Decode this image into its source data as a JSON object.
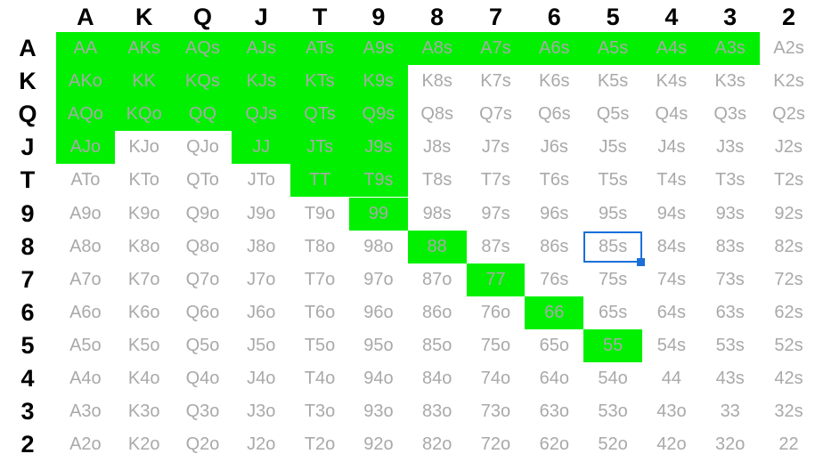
{
  "ranks": [
    "A",
    "K",
    "Q",
    "J",
    "T",
    "9",
    "8",
    "7",
    "6",
    "5",
    "4",
    "3",
    "2"
  ],
  "rows": [
    [
      "AA",
      "AKs",
      "AQs",
      "AJs",
      "ATs",
      "A9s",
      "A8s",
      "A7s",
      "A6s",
      "A5s",
      "A4s",
      "A3s",
      "A2s"
    ],
    [
      "AKo",
      "KK",
      "KQs",
      "KJs",
      "KTs",
      "K9s",
      "K8s",
      "K7s",
      "K6s",
      "K5s",
      "K4s",
      "K3s",
      "K2s"
    ],
    [
      "AQo",
      "KQo",
      "QQ",
      "QJs",
      "QTs",
      "Q9s",
      "Q8s",
      "Q7s",
      "Q6s",
      "Q5s",
      "Q4s",
      "Q3s",
      "Q2s"
    ],
    [
      "AJo",
      "KJo",
      "QJo",
      "JJ",
      "JTs",
      "J9s",
      "J8s",
      "J7s",
      "J6s",
      "J5s",
      "J4s",
      "J3s",
      "J2s"
    ],
    [
      "ATo",
      "KTo",
      "QTo",
      "JTo",
      "TT",
      "T9s",
      "T8s",
      "T7s",
      "T6s",
      "T5s",
      "T4s",
      "T3s",
      "T2s"
    ],
    [
      "A9o",
      "K9o",
      "Q9o",
      "J9o",
      "T9o",
      "99",
      "98s",
      "97s",
      "96s",
      "95s",
      "94s",
      "93s",
      "92s"
    ],
    [
      "A8o",
      "K8o",
      "Q8o",
      "J8o",
      "T8o",
      "98o",
      "88",
      "87s",
      "86s",
      "85s",
      "84s",
      "83s",
      "82s"
    ],
    [
      "A7o",
      "K7o",
      "Q7o",
      "J7o",
      "T7o",
      "97o",
      "87o",
      "77",
      "76s",
      "75s",
      "74s",
      "73s",
      "72s"
    ],
    [
      "A6o",
      "K6o",
      "Q6o",
      "J6o",
      "T6o",
      "96o",
      "86o",
      "76o",
      "66",
      "65s",
      "64s",
      "63s",
      "62s"
    ],
    [
      "A5o",
      "K5o",
      "Q5o",
      "J5o",
      "T5o",
      "95o",
      "85o",
      "75o",
      "65o",
      "55",
      "54s",
      "53s",
      "52s"
    ],
    [
      "A4o",
      "K4o",
      "Q4o",
      "J4o",
      "T4o",
      "94o",
      "84o",
      "74o",
      "64o",
      "54o",
      "44",
      "43s",
      "42s"
    ],
    [
      "A3o",
      "K3o",
      "Q3o",
      "J3o",
      "T3o",
      "93o",
      "83o",
      "73o",
      "63o",
      "53o",
      "43o",
      "33",
      "32s"
    ],
    [
      "A2o",
      "K2o",
      "Q2o",
      "J2o",
      "T2o",
      "92o",
      "82o",
      "72o",
      "62o",
      "52o",
      "42o",
      "32o",
      "22"
    ]
  ],
  "selected": [
    "AA",
    "AKs",
    "AQs",
    "AJs",
    "ATs",
    "A9s",
    "A8s",
    "A7s",
    "A6s",
    "A5s",
    "A4s",
    "A3s",
    "AKo",
    "KK",
    "KQs",
    "KJs",
    "KTs",
    "K9s",
    "AQo",
    "KQo",
    "QQ",
    "QJs",
    "QTs",
    "Q9s",
    "AJo",
    "JJ",
    "JTs",
    "J9s",
    "TT",
    "T9s",
    "99",
    "88",
    "77",
    "66",
    "55"
  ],
  "active_cell": "85s",
  "colors": {
    "selected_fill": "#00f000",
    "cell_text": "#a9a9a9",
    "header_text": "#000000",
    "cursor": "#1a6fd8"
  }
}
